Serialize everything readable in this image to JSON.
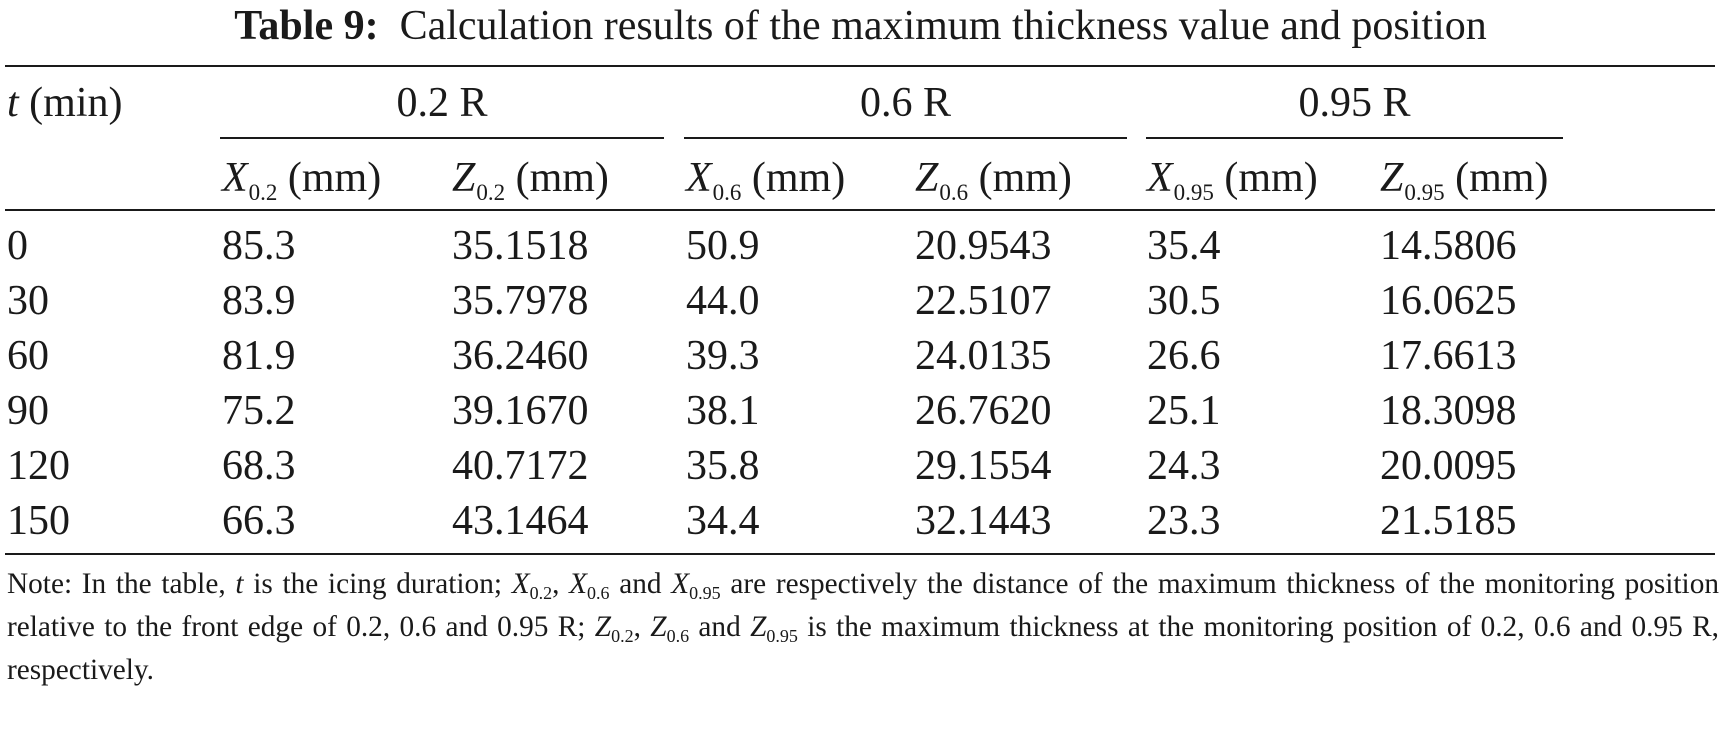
{
  "caption": {
    "label": "Table 9:",
    "text": "Calculation results of the maximum thickness value and position"
  },
  "table": {
    "row_header": {
      "var": "t",
      "unit": "(min)"
    },
    "groups": [
      {
        "label": "0.2 R",
        "cols": [
          {
            "sym": "X",
            "sub": "0.2",
            "unit": "(mm)"
          },
          {
            "sym": "Z",
            "sub": "0.2",
            "unit": "(mm)"
          }
        ]
      },
      {
        "label": "0.6 R",
        "cols": [
          {
            "sym": "X",
            "sub": "0.6",
            "unit": "(mm)"
          },
          {
            "sym": "Z",
            "sub": "0.6",
            "unit": "(mm)"
          }
        ]
      },
      {
        "label": "0.95 R",
        "cols": [
          {
            "sym": "X",
            "sub": "0.95",
            "unit": "(mm)"
          },
          {
            "sym": "Z",
            "sub": "0.95",
            "unit": "(mm)"
          }
        ]
      }
    ],
    "rows": [
      [
        "0",
        "85.3",
        "35.1518",
        "50.9",
        "20.9543",
        "35.4",
        "14.5806"
      ],
      [
        "30",
        "83.9",
        "35.7978",
        "44.0",
        "22.5107",
        "30.5",
        "16.0625"
      ],
      [
        "60",
        "81.9",
        "36.2460",
        "39.3",
        "24.0135",
        "26.6",
        "17.6613"
      ],
      [
        "90",
        "75.2",
        "39.1670",
        "38.1",
        "26.7620",
        "25.1",
        "18.3098"
      ],
      [
        "120",
        "68.3",
        "40.7172",
        "35.8",
        "29.1554",
        "24.3",
        "20.0095"
      ],
      [
        "150",
        "66.3",
        "43.1464",
        "34.4",
        "32.1443",
        "23.3",
        "21.5185"
      ]
    ]
  },
  "note": {
    "p1": "Note: In the table, ",
    "t": "t",
    "p2": " is the icing duration; ",
    "x": "X",
    "s1": "0.2",
    "sep1": ", ",
    "s2": "0.6",
    "and": " and ",
    "s3": "0.95",
    "p3": " are respectively the distance of the maximum thickness of the monitoring position relative to the front edge of 0.2, 0.6 and 0.95 R; ",
    "z": "Z",
    "p4": " is the maximum thickness at the monitoring position of 0.2, 0.6 and 0.95 R, respectively."
  }
}
